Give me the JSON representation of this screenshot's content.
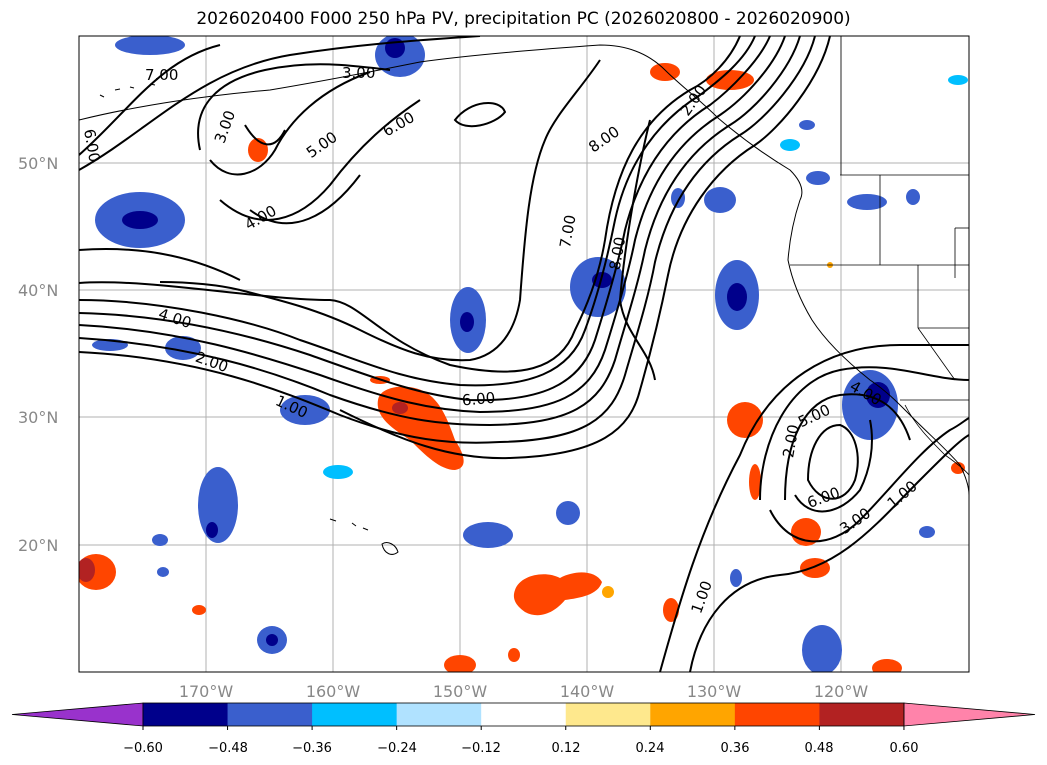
{
  "title": "2026020400 F000 250 hPa PV, precipitation PC (2026020800 - 2026020900)",
  "map": {
    "lat_labels": [
      "50°N",
      "40°N",
      "30°N",
      "20°N"
    ],
    "lon_labels": [
      "170°W",
      "160°W",
      "150°W",
      "140°W",
      "130°W",
      "120°W"
    ],
    "lat_ticks": [
      50,
      40,
      30,
      20
    ],
    "lon_ticks": [
      -170,
      -160,
      -150,
      -140,
      -130,
      -120
    ],
    "extent": {
      "lon_min": -180,
      "lon_max": -110,
      "lat_min": 10,
      "lat_max": 60
    },
    "gridlines": true,
    "contour_labels": [
      "7.00",
      "3.00",
      "6.00",
      "3.00",
      "5.00",
      "6.00",
      "4.00",
      "8.00",
      "7.00",
      "8.00",
      "4.00",
      "2.00",
      "1.00",
      "6.00",
      "2.00",
      "5.00",
      "4.00",
      "6.00",
      "3.00",
      "1.00",
      "1.00",
      "2.00"
    ]
  },
  "colorbar": {
    "ticks": [
      "−0.60",
      "−0.48",
      "−0.36",
      "−0.24",
      "−0.12",
      "0.12",
      "0.24",
      "0.36",
      "0.48",
      "0.60"
    ],
    "colors": [
      "#9932cc",
      "#00008b",
      "#3a5fcd",
      "#00bfff",
      "#b0e2ff",
      "#ffffff",
      "#fee88d",
      "#ffa500",
      "#ff4500",
      "#b22222",
      "#ff83aa"
    ]
  },
  "colors": {
    "neg_dark": "#00008b",
    "neg_mid": "#3a5fcd",
    "neg_light": "#00bfff",
    "pos_mid": "#ff4500",
    "pos_dark": "#b22222",
    "pos_light": "#ffa500",
    "grid": "#b0b0b0",
    "contour": "#000000"
  }
}
